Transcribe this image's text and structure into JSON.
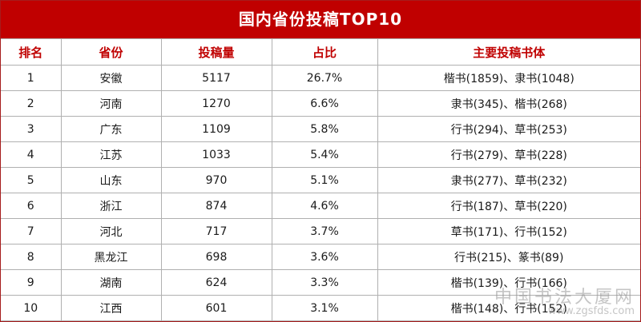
{
  "chart_data": {
    "type": "table",
    "title": "国内省份投稿TOP10",
    "columns": [
      "排名",
      "省份",
      "投稿量",
      "占比",
      "主要投稿书体"
    ],
    "rows": [
      [
        "1",
        "安徽",
        "5117",
        "26.7%",
        "楷书(1859)、隶书(1048)"
      ],
      [
        "2",
        "河南",
        "1270",
        "6.6%",
        "隶书(345)、楷书(268)"
      ],
      [
        "3",
        "广东",
        "1109",
        "5.8%",
        "行书(294)、草书(253)"
      ],
      [
        "4",
        "江苏",
        "1033",
        "5.4%",
        "行书(279)、草书(228)"
      ],
      [
        "5",
        "山东",
        "970",
        "5.1%",
        "隶书(277)、草书(232)"
      ],
      [
        "6",
        "浙江",
        "874",
        "4.6%",
        "行书(187)、草书(220)"
      ],
      [
        "7",
        "河北",
        "717",
        "3.7%",
        "草书(171)、行书(152)"
      ],
      [
        "8",
        "黑龙江",
        "698",
        "3.6%",
        "行书(215)、篆书(89)"
      ],
      [
        "9",
        "湖南",
        "624",
        "3.3%",
        "楷书(139)、行书(166)"
      ],
      [
        "10",
        "江西",
        "601",
        "3.1%",
        "楷书(148)、行书(152)"
      ]
    ]
  },
  "colors": {
    "title_bg": "#c00000",
    "header_text": "#c00000",
    "grid": "#b0b0b0"
  },
  "watermark": {
    "cn": "中国书法大厦网",
    "url": "www.zgsfds.com"
  }
}
